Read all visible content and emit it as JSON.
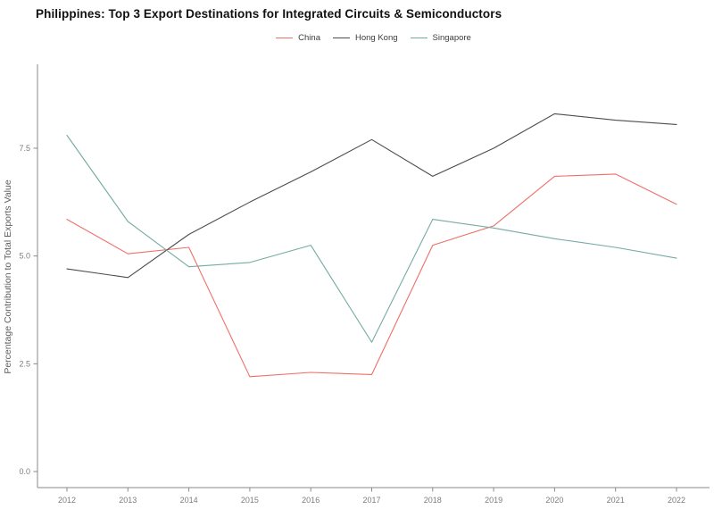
{
  "title": "Philippines: Top 3 Export Destinations for Integrated Circuits & Semiconductors",
  "chart_data": {
    "type": "line",
    "title": "Philippines: Top 3 Export Destinations for Integrated Circuits & Semiconductors",
    "xlabel": "",
    "ylabel": "Percentage Contribution to Total Exports Value",
    "x": [
      2012,
      2013,
      2014,
      2015,
      2016,
      2017,
      2018,
      2019,
      2020,
      2021,
      2022
    ],
    "x_tick_labels": [
      "2012",
      "2013",
      "2014",
      "2015",
      "2016",
      "2017",
      "2018",
      "2019",
      "2020",
      "2021",
      "2022"
    ],
    "y_ticks": [
      0.0,
      2.5,
      5.0,
      7.5
    ],
    "y_tick_labels": [
      "0.0",
      "2.5",
      "5.0",
      "7.5"
    ],
    "ylim": [
      0,
      9.4
    ],
    "grid": false,
    "legend_position": "top-center",
    "series": [
      {
        "name": "China",
        "color": "#ee6f68",
        "values": [
          5.85,
          5.05,
          5.2,
          2.2,
          2.3,
          2.25,
          5.25,
          5.7,
          6.85,
          6.9,
          6.2
        ]
      },
      {
        "name": "Hong Kong",
        "color": "#4d4d4d",
        "values": [
          4.7,
          4.5,
          5.5,
          6.25,
          6.95,
          7.7,
          6.85,
          7.5,
          8.3,
          8.15,
          8.05
        ]
      },
      {
        "name": "Singapore",
        "color": "#74aba2",
        "values": [
          7.8,
          5.8,
          4.75,
          4.85,
          5.25,
          3.0,
          5.85,
          5.65,
          5.4,
          5.2,
          4.95
        ]
      }
    ]
  },
  "colors": {
    "axis": "#8a8a8a",
    "tick_label": "#7d7d7d",
    "y_axis_label": "#5f5f5f",
    "title": "#111111"
  }
}
